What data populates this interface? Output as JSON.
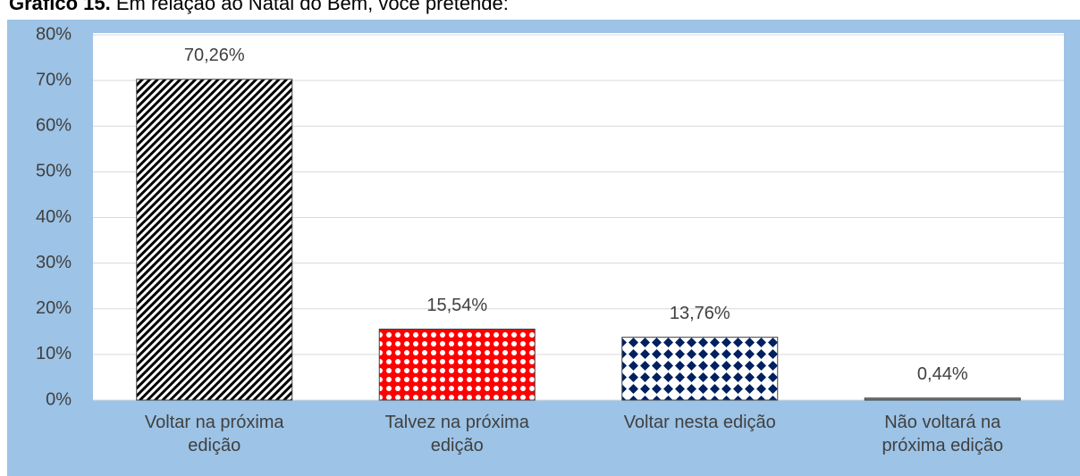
{
  "chart_data": {
    "type": "bar",
    "title": [
      "Gráfico 15.",
      "Em relação ao Natal do Bem, você pretende:"
    ],
    "categories": [
      "Voltar na próxima edição",
      "Talvez na próxima edição",
      "Voltar nesta edição",
      "Não voltará na próxima edição"
    ],
    "values": [
      70.26,
      15.54,
      13.76,
      0.44
    ],
    "value_labels": [
      "70,26%",
      "15,54%",
      "13,76%",
      "0,44%"
    ],
    "colors": [
      "#000000",
      "#ff0000",
      "#002060",
      "#808080"
    ],
    "ylim": [
      0,
      80
    ],
    "yticks": [
      {
        "value": 0,
        "label": "0%"
      },
      {
        "value": 10,
        "label": "10%"
      },
      {
        "value": 20,
        "label": "20%"
      },
      {
        "value": 30,
        "label": "30%"
      },
      {
        "value": 40,
        "label": "40%"
      },
      {
        "value": 50,
        "label": "50%"
      },
      {
        "value": 60,
        "label": "60%"
      },
      {
        "value": 70,
        "label": "70%"
      },
      {
        "value": 80,
        "label": "80%"
      }
    ],
    "grid": true
  }
}
